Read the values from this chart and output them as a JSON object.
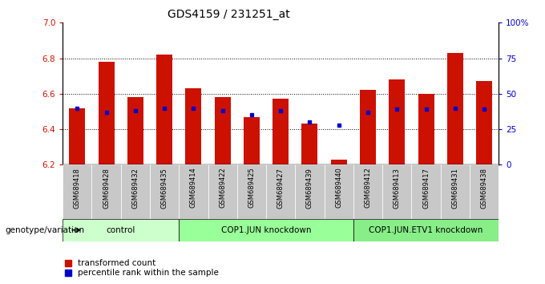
{
  "title": "GDS4159 / 231251_at",
  "samples": [
    "GSM689418",
    "GSM689428",
    "GSM689432",
    "GSM689435",
    "GSM689414",
    "GSM689422",
    "GSM689425",
    "GSM689427",
    "GSM689439",
    "GSM689440",
    "GSM689412",
    "GSM689413",
    "GSM689417",
    "GSM689431",
    "GSM689438"
  ],
  "red_values": [
    6.52,
    6.78,
    6.58,
    6.82,
    6.63,
    6.58,
    6.47,
    6.57,
    6.43,
    6.23,
    6.62,
    6.68,
    6.6,
    6.83,
    6.67
  ],
  "blue_percentiles": [
    40,
    37,
    38,
    40,
    40,
    38,
    35,
    38,
    30,
    28,
    37,
    39,
    39,
    40,
    39
  ],
  "groups": [
    {
      "label": "control",
      "start": 0,
      "end": 4
    },
    {
      "label": "COP1.JUN knockdown",
      "start": 4,
      "end": 10
    },
    {
      "label": "COP1.JUN.ETV1 knockdown",
      "start": 10,
      "end": 15
    }
  ],
  "group_colors": [
    "#ccffcc",
    "#99ff99",
    "#88ee88"
  ],
  "ymin": 6.2,
  "ymax": 7.0,
  "yticks": [
    6.2,
    6.4,
    6.6,
    6.8,
    7.0
  ],
  "right_yticks": [
    0,
    25,
    50,
    75,
    100
  ],
  "bar_color": "#cc1100",
  "dot_color": "#0000cc",
  "bar_width": 0.55,
  "plot_bg_color": "#ffffff",
  "tick_label_bg": "#cccccc",
  "axis_label_color_left": "#cc1100",
  "axis_label_color_right": "#0000cc",
  "genotype_label": "genotype/variation"
}
